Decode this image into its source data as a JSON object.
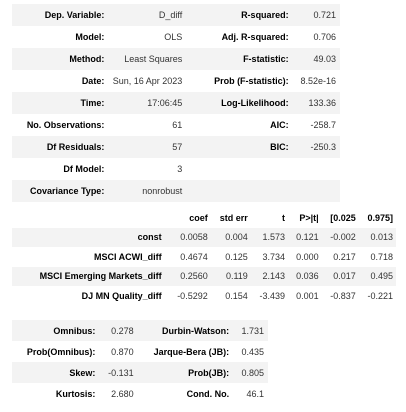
{
  "summary1": {
    "rows": [
      {
        "l1": "Dep. Variable:",
        "v1": "D_diff",
        "l2": "R-squared:",
        "v2": "0.721"
      },
      {
        "l1": "Model:",
        "v1": "OLS",
        "l2": "Adj. R-squared:",
        "v2": "0.706"
      },
      {
        "l1": "Method:",
        "v1": "Least Squares",
        "l2": "F-statistic:",
        "v2": "49.03"
      },
      {
        "l1": "Date:",
        "v1": "Sun, 16 Apr 2023",
        "l2": "Prob (F-statistic):",
        "v2": "8.52e-16"
      },
      {
        "l1": "Time:",
        "v1": "17:06:45",
        "l2": "Log-Likelihood:",
        "v2": "133.36"
      },
      {
        "l1": "No. Observations:",
        "v1": "61",
        "l2": "AIC:",
        "v2": "-258.7"
      },
      {
        "l1": "Df Residuals:",
        "v1": "57",
        "l2": "BIC:",
        "v2": "-250.3"
      },
      {
        "l1": "Df Model:",
        "v1": "3",
        "l2": "",
        "v2": ""
      },
      {
        "l1": "Covariance Type:",
        "v1": "nonrobust",
        "l2": "",
        "v2": ""
      }
    ]
  },
  "coef_table": {
    "headers": [
      "",
      "coef",
      "std err",
      "t",
      "P>|t|",
      "[0.025",
      "0.975]"
    ],
    "rows": [
      {
        "name": "const",
        "vals": [
          "0.0058",
          "0.004",
          "1.573",
          "0.121",
          "-0.002",
          "0.013"
        ]
      },
      {
        "name": "MSCI ACWI_diff",
        "vals": [
          "0.4674",
          "0.125",
          "3.734",
          "0.000",
          "0.217",
          "0.718"
        ]
      },
      {
        "name": "MSCI Emerging Markets_diff",
        "vals": [
          "0.2560",
          "0.119",
          "2.143",
          "0.036",
          "0.017",
          "0.495"
        ]
      },
      {
        "name": "DJ MN Quality_diff",
        "vals": [
          "-0.5292",
          "0.154",
          "-3.439",
          "0.001",
          "-0.837",
          "-0.221"
        ]
      }
    ]
  },
  "diagnostics": {
    "rows": [
      {
        "l1": "Omnibus:",
        "v1": "0.278",
        "l2": "Durbin-Watson:",
        "v2": "1.731"
      },
      {
        "l1": "Prob(Omnibus):",
        "v1": "0.870",
        "l2": "Jarque-Bera (JB):",
        "v2": "0.435"
      },
      {
        "l1": "Skew:",
        "v1": "-0.131",
        "l2": "Prob(JB):",
        "v2": "0.805"
      },
      {
        "l1": "Kurtosis:",
        "v1": "2.680",
        "l2": "Cond. No.",
        "v2": "46.1"
      }
    ]
  }
}
